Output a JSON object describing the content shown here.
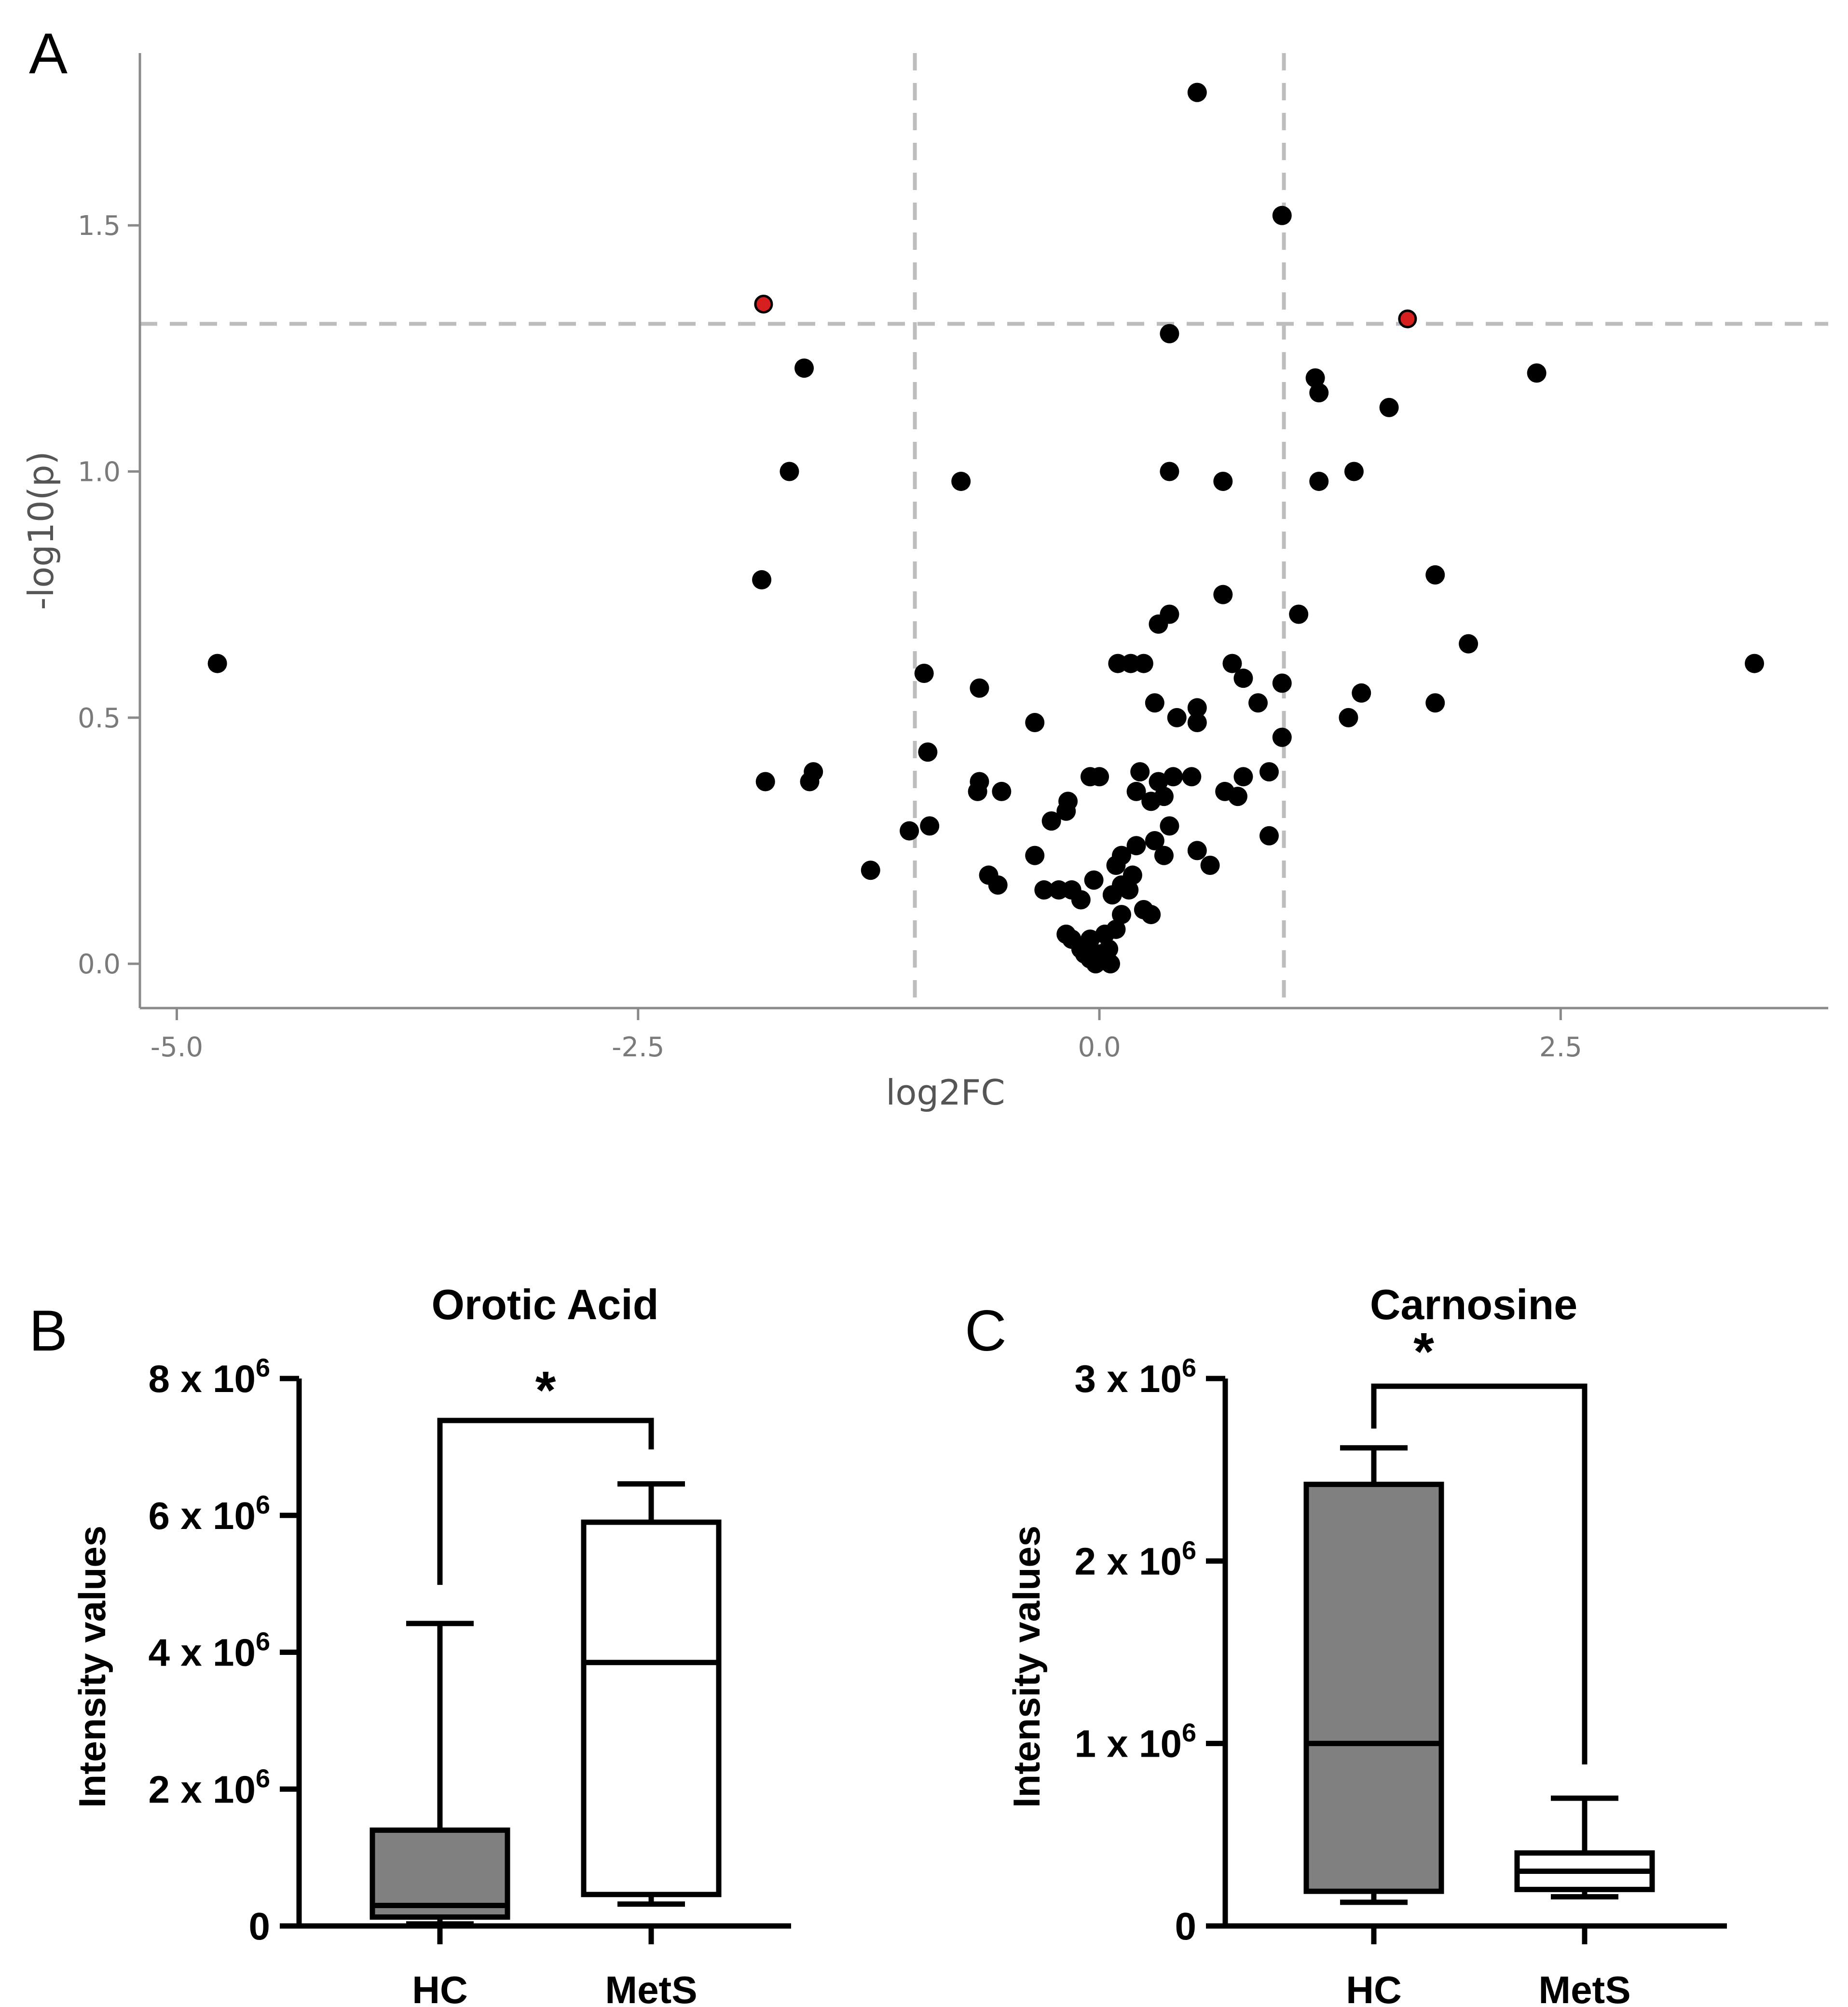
{
  "panel_labels": [
    "A",
    "B",
    "C"
  ],
  "chart_data": [
    {
      "panel": "A",
      "type": "scatter",
      "title": "",
      "xlabel": "log2FC",
      "ylabel": "-log10(p)",
      "xlim": [
        -5.2,
        3.95
      ],
      "ylim": [
        -0.09,
        1.85
      ],
      "xticks": [
        -5.0,
        -2.5,
        0.0,
        2.5
      ],
      "xtick_labels": [
        "-5.0",
        "-2.5",
        "0.0",
        "2.5"
      ],
      "yticks": [
        0.0,
        0.5,
        1.0,
        1.5
      ],
      "ytick_labels": [
        "0.0",
        "0.5",
        "1.0",
        "1.5"
      ],
      "thresholds": {
        "log2fc": [
          -1,
          1
        ],
        "neg_log10_p": 1.3
      },
      "colors": {
        "default": "#000000",
        "significant": "#d62020",
        "threshold": "#bdbdbd",
        "axis": "#8a8a8a"
      },
      "points": [
        [
          0.53,
          1.77
        ],
        [
          0.99,
          1.52
        ],
        [
          0.38,
          1.28
        ],
        [
          -1.82,
          1.34,
          "sig"
        ],
        [
          1.67,
          1.31,
          "sig"
        ],
        [
          -1.6,
          1.21
        ],
        [
          2.37,
          1.2
        ],
        [
          1.17,
          1.19
        ],
        [
          1.19,
          1.16
        ],
        [
          1.57,
          1.13
        ],
        [
          -1.68,
          1.0
        ],
        [
          0.38,
          1.0
        ],
        [
          1.38,
          1.0
        ],
        [
          -0.75,
          0.98
        ],
        [
          0.67,
          0.98
        ],
        [
          1.19,
          0.98
        ],
        [
          -1.83,
          0.78
        ],
        [
          1.82,
          0.79
        ],
        [
          0.67,
          0.75
        ],
        [
          1.08,
          0.71
        ],
        [
          0.38,
          0.71
        ],
        [
          0.32,
          0.69
        ],
        [
          2.0,
          0.65
        ],
        [
          -4.78,
          0.61
        ],
        [
          3.55,
          0.61
        ],
        [
          0.1,
          0.61
        ],
        [
          0.17,
          0.61
        ],
        [
          0.24,
          0.61
        ],
        [
          0.72,
          0.61
        ],
        [
          0.78,
          0.58
        ],
        [
          -0.95,
          0.59
        ],
        [
          0.99,
          0.57
        ],
        [
          -0.65,
          0.56
        ],
        [
          1.42,
          0.55
        ],
        [
          0.3,
          0.53
        ],
        [
          0.86,
          0.53
        ],
        [
          1.82,
          0.53
        ],
        [
          0.53,
          0.52
        ],
        [
          0.53,
          0.49
        ],
        [
          0.42,
          0.5
        ],
        [
          1.35,
          0.5
        ],
        [
          -0.35,
          0.49
        ],
        [
          0.99,
          0.46
        ],
        [
          -0.93,
          0.43
        ],
        [
          -1.55,
          0.39
        ],
        [
          -1.57,
          0.37
        ],
        [
          -1.81,
          0.37
        ],
        [
          -0.05,
          0.38
        ],
        [
          0.0,
          0.38
        ],
        [
          0.22,
          0.39
        ],
        [
          0.32,
          0.37
        ],
        [
          0.4,
          0.38
        ],
        [
          0.5,
          0.38
        ],
        [
          0.78,
          0.38
        ],
        [
          0.92,
          0.39
        ],
        [
          -0.65,
          0.37
        ],
        [
          -0.53,
          0.35
        ],
        [
          -0.66,
          0.35
        ],
        [
          0.2,
          0.35
        ],
        [
          0.28,
          0.33
        ],
        [
          0.35,
          0.34
        ],
        [
          0.68,
          0.35
        ],
        [
          0.75,
          0.34
        ],
        [
          -0.17,
          0.33
        ],
        [
          -0.18,
          0.31
        ],
        [
          -0.26,
          0.29
        ],
        [
          0.38,
          0.28
        ],
        [
          -0.92,
          0.28
        ],
        [
          -1.03,
          0.27
        ],
        [
          0.3,
          0.25
        ],
        [
          0.92,
          0.26
        ],
        [
          0.2,
          0.24
        ],
        [
          0.12,
          0.22
        ],
        [
          0.35,
          0.22
        ],
        [
          0.53,
          0.23
        ],
        [
          -0.35,
          0.22
        ],
        [
          0.6,
          0.2
        ],
        [
          0.09,
          0.2
        ],
        [
          -1.24,
          0.19
        ],
        [
          -0.6,
          0.18
        ],
        [
          -0.55,
          0.16
        ],
        [
          0.18,
          0.18
        ],
        [
          -0.03,
          0.17
        ],
        [
          0.12,
          0.16
        ],
        [
          0.16,
          0.15
        ],
        [
          -0.3,
          0.15
        ],
        [
          -0.22,
          0.15
        ],
        [
          -0.15,
          0.15
        ],
        [
          0.07,
          0.14
        ],
        [
          -0.1,
          0.13
        ],
        [
          0.24,
          0.11
        ],
        [
          0.28,
          0.1
        ],
        [
          0.12,
          0.1
        ],
        [
          0.09,
          0.07
        ],
        [
          -0.18,
          0.06
        ],
        [
          -0.15,
          0.05
        ],
        [
          -0.05,
          0.05
        ],
        [
          0.03,
          0.06
        ],
        [
          -0.1,
          0.03
        ],
        [
          0.05,
          0.03
        ],
        [
          -0.05,
          0.01
        ],
        [
          0.0,
          0.02
        ],
        [
          0.04,
          0.01
        ],
        [
          -0.02,
          0.0
        ],
        [
          0.06,
          0.0
        ],
        [
          -0.08,
          0.02
        ]
      ]
    },
    {
      "panel": "B",
      "type": "box",
      "title": "Orotic Acid",
      "xlabel": "",
      "ylabel": "Intensity values",
      "categories": [
        "HC",
        "MetS"
      ],
      "ylim": [
        0,
        8000000
      ],
      "yticks": [
        0,
        2000000,
        4000000,
        6000000,
        8000000
      ],
      "ytick_labels": [
        [
          "0",
          ""
        ],
        [
          "2 x 10",
          "6"
        ],
        [
          "4 x 10",
          "6"
        ],
        [
          "6 x 10",
          "6"
        ],
        [
          "8 x 10",
          "6"
        ]
      ],
      "boxes": [
        {
          "group": "HC",
          "min": 30000,
          "q1": 130000,
          "median": 300000,
          "q3": 1400000,
          "max": 4420000,
          "fill": "#808080"
        },
        {
          "group": "MetS",
          "min": 320000,
          "q1": 460000,
          "median": 3850000,
          "q3": 5900000,
          "max": 6460000,
          "fill": "#ffffff"
        }
      ],
      "significance": {
        "groups": [
          "HC",
          "MetS"
        ],
        "label": "*"
      }
    },
    {
      "panel": "C",
      "type": "box",
      "title": "Carnosine",
      "xlabel": "",
      "ylabel": "Intensity values",
      "categories": [
        "HC",
        "MetS"
      ],
      "ylim": [
        0,
        3000000
      ],
      "yticks": [
        0,
        1000000,
        2000000,
        3000000
      ],
      "ytick_labels": [
        [
          "0",
          ""
        ],
        [
          "1 x 10",
          "6"
        ],
        [
          "2 x 10",
          "6"
        ],
        [
          "3 x 10",
          "6"
        ]
      ],
      "boxes": [
        {
          "group": "HC",
          "min": 130000,
          "q1": 190000,
          "median": 1000000,
          "q3": 2420000,
          "max": 2620000,
          "fill": "#808080"
        },
        {
          "group": "MetS",
          "min": 160000,
          "q1": 200000,
          "median": 300000,
          "q3": 400000,
          "max": 700000,
          "fill": "#ffffff"
        }
      ],
      "significance": {
        "groups": [
          "HC",
          "MetS"
        ],
        "label": "*"
      }
    }
  ]
}
